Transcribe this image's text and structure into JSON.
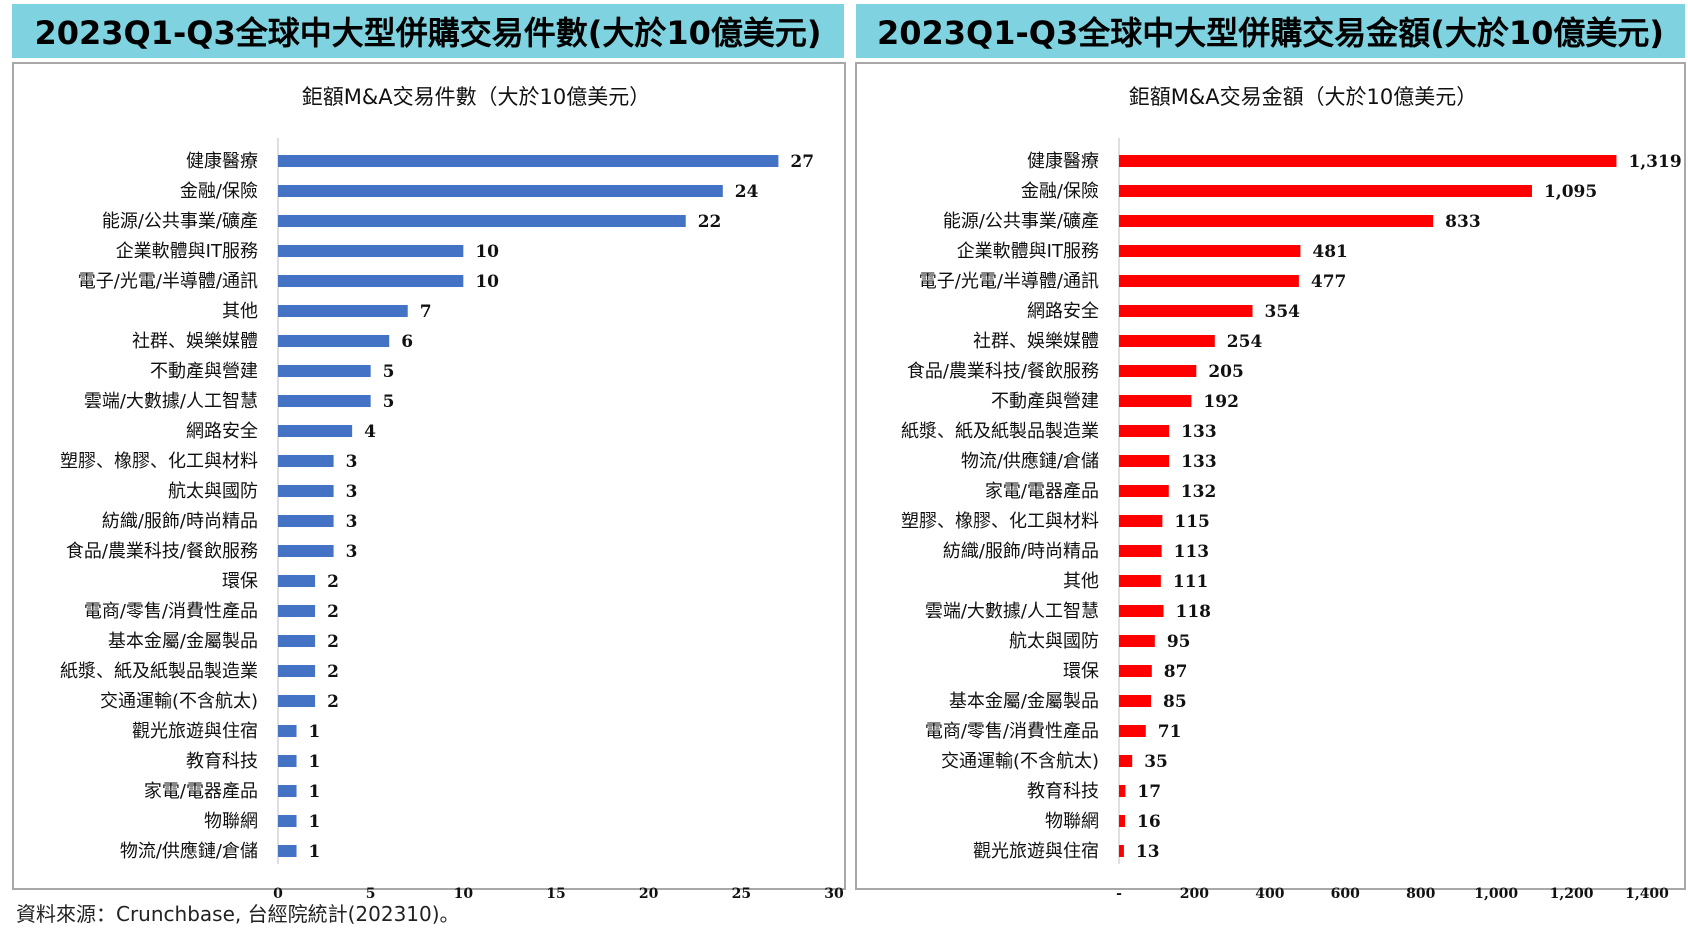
{
  "left_panel": {
    "header": "2023Q1-Q3全球中大型併購交易件數(大於10億美元)"
  },
  "right_panel": {
    "header": "2023Q1-Q3全球中大型併購交易金額(大於10億美元)"
  },
  "source_note": "資料來源：Crunchbase, 台經院統計(202310)。",
  "chart_data": [
    {
      "type": "bar",
      "orientation": "horizontal",
      "title": "鉅額M&A交易件數（大於10億美元）",
      "bar_color": "#4472c4",
      "xlim": [
        0,
        30
      ],
      "x_ticks": [
        "0",
        "5",
        "10",
        "15",
        "20",
        "25",
        "30"
      ],
      "categories": [
        "健康醫療",
        "金融/保險",
        "能源/公共事業/礦產",
        "企業軟體與IT服務",
        "電子/光電/半導體/通訊",
        "其他",
        "社群、娛樂媒體",
        "不動產與營建",
        "雲端/大數據/人工智慧",
        "網路安全",
        "塑膠、橡膠、化工與材料",
        "航太與國防",
        "紡織/服飾/時尚精品",
        "食品/農業科技/餐飲服務",
        "環保",
        "電商/零售/消費性產品",
        "基本金屬/金屬製品",
        "紙漿、紙及紙製品製造業",
        "交通運輸(不含航太)",
        "觀光旅遊與住宿",
        "教育科技",
        "家電/電器產品",
        "物聯網",
        "物流/供應鏈/倉儲"
      ],
      "values": [
        27,
        24,
        22,
        10,
        10,
        7,
        6,
        5,
        5,
        4,
        3,
        3,
        3,
        3,
        2,
        2,
        2,
        2,
        2,
        1,
        1,
        1,
        1,
        1
      ],
      "value_labels": [
        "27",
        "24",
        "22",
        "10",
        "10",
        "7",
        "6",
        "5",
        "5",
        "4",
        "3",
        "3",
        "3",
        "3",
        "2",
        "2",
        "2",
        "2",
        "2",
        "1",
        "1",
        "1",
        "1",
        "1"
      ]
    },
    {
      "type": "bar",
      "orientation": "horizontal",
      "title": "鉅額M&A交易金額（大於10億美元）",
      "bar_color": "#ff0000",
      "xlim": [
        0,
        1400
      ],
      "x_ticks": [
        "-",
        "200",
        "400",
        "600",
        "800",
        "1,000",
        "1,200",
        "1,400"
      ],
      "categories": [
        "健康醫療",
        "金融/保險",
        "能源/公共事業/礦產",
        "企業軟體與IT服務",
        "電子/光電/半導體/通訊",
        "網路安全",
        "社群、娛樂媒體",
        "食品/農業科技/餐飲服務",
        "不動產與營建",
        "紙漿、紙及紙製品製造業",
        "物流/供應鏈/倉儲",
        "家電/電器產品",
        "塑膠、橡膠、化工與材料",
        "紡織/服飾/時尚精品",
        "其他",
        "雲端/大數據/人工智慧",
        "航太與國防",
        "環保",
        "基本金屬/金屬製品",
        "電商/零售/消費性產品",
        "交通運輸(不含航太)",
        "教育科技",
        "物聯網",
        "觀光旅遊與住宿"
      ],
      "values": [
        1319,
        1095,
        833,
        481,
        477,
        354,
        254,
        205,
        192,
        133,
        133,
        132,
        115,
        113,
        111,
        118,
        95,
        87,
        85,
        71,
        35,
        17,
        16,
        13
      ],
      "value_labels": [
        "1,319",
        "1,095",
        "833",
        "481",
        "477",
        "354",
        "254",
        "205",
        "192",
        "133",
        "133",
        "132",
        "115",
        "113",
        "111",
        "118",
        "95",
        "87",
        "85",
        "71",
        "35",
        "17",
        "16",
        "13"
      ]
    }
  ]
}
